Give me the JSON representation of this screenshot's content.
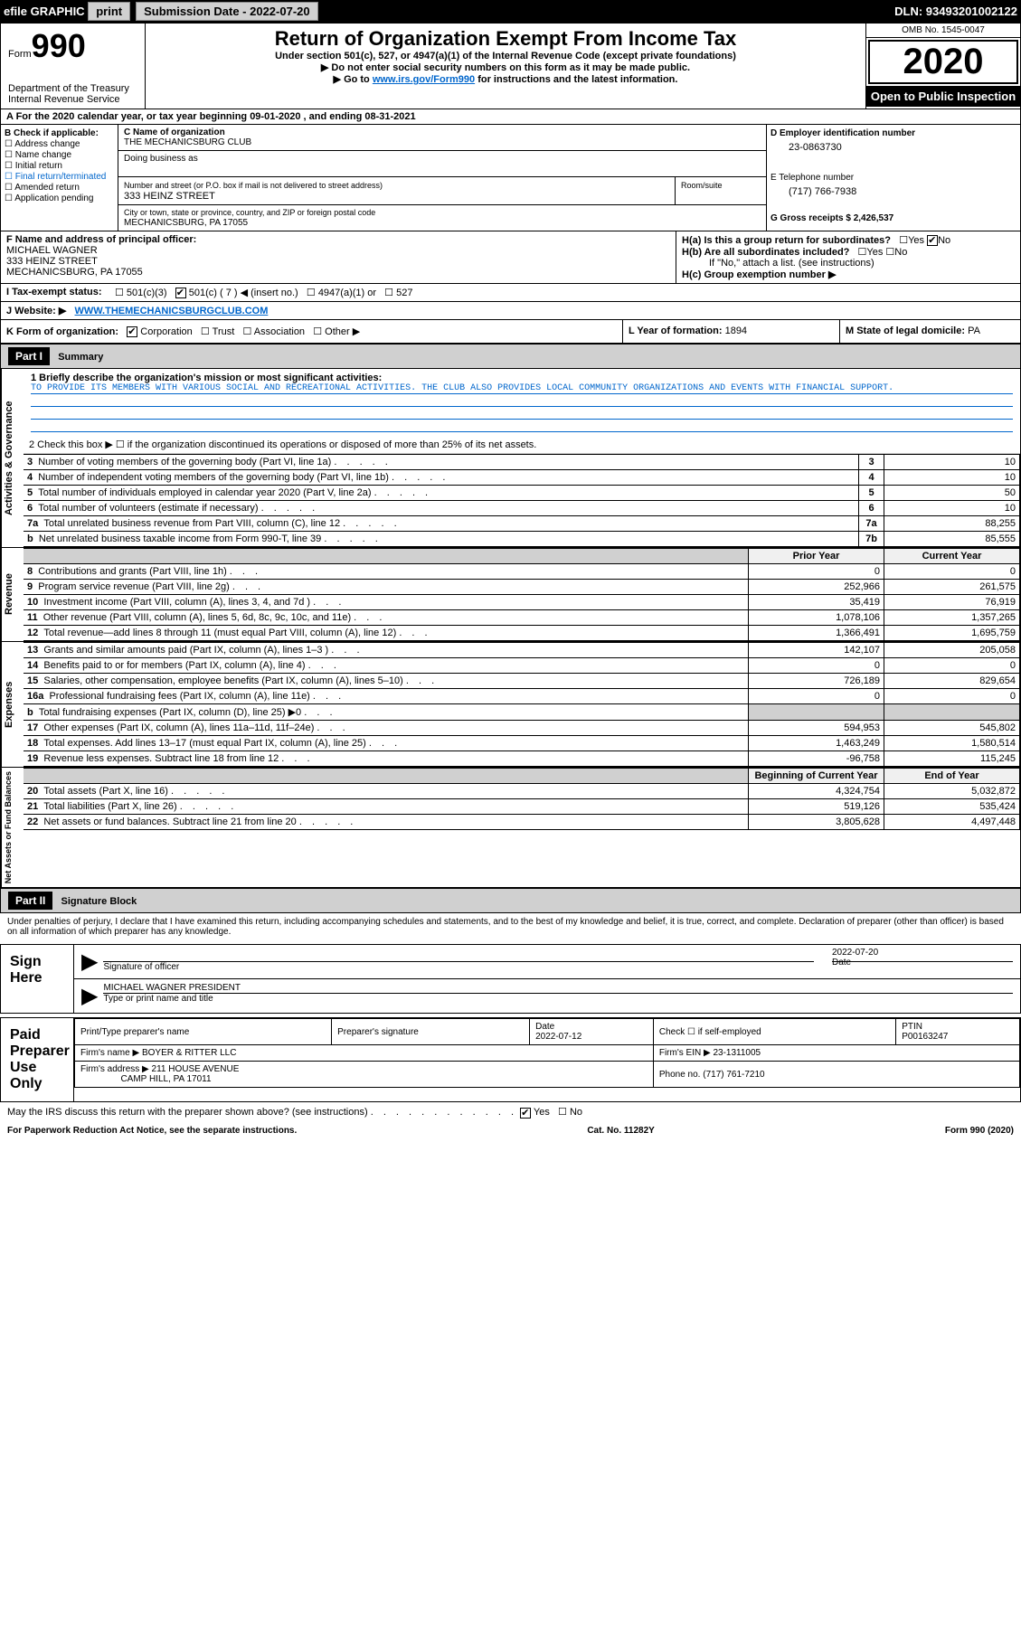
{
  "topbar": {
    "efile": "efile GRAPHIC",
    "print": "print",
    "sub_label": "Submission Date - 2022-07-20",
    "dln": "DLN: 93493201002122"
  },
  "header": {
    "form": "Form",
    "num": "990",
    "dept": "Department of the Treasury\nInternal Revenue Service",
    "title": "Return of Organization Exempt From Income Tax",
    "sub": "Under section 501(c), 527, or 4947(a)(1) of the Internal Revenue Code (except private foundations)",
    "arrow1": "▶ Do not enter social security numbers on this form as it may be made public.",
    "arrow2_pre": "▶ Go to ",
    "arrow2_link": "www.irs.gov/Form990",
    "arrow2_post": " for instructions and the latest information.",
    "omb": "OMB No. 1545-0047",
    "year": "2020",
    "inspect": "Open to Public Inspection"
  },
  "line_a": "A For the 2020 calendar year, or tax year beginning 09-01-2020    , and ending 08-31-2021",
  "sec_b": {
    "lbl": "B Check if applicable:",
    "opts": [
      "Address change",
      "Name change",
      "Initial return",
      "Final return/terminated",
      "Amended return",
      "Application pending"
    ],
    "c_lbl": "C Name of organization",
    "c_val": "THE MECHANICSBURG CLUB",
    "dba_lbl": "Doing business as",
    "addr_lbl": "Number and street (or P.O. box if mail is not delivered to street address)",
    "addr_val": "333 HEINZ STREET",
    "room_lbl": "Room/suite",
    "city_lbl": "City or town, state or province, country, and ZIP or foreign postal code",
    "city_val": "MECHANICSBURG, PA  17055",
    "d_lbl": "D Employer identification number",
    "d_val": "23-0863730",
    "e_lbl": "E Telephone number",
    "e_val": "(717) 766-7938",
    "g_lbl": "G Gross receipts $",
    "g_val": "2,426,537"
  },
  "sec_f": {
    "lbl": "F  Name and address of principal officer:",
    "name": "MICHAEL WAGNER",
    "addr": "333 HEINZ STREET",
    "city": "MECHANICSBURG, PA  17055"
  },
  "sec_h": {
    "a": "H(a)  Is this a group return for subordinates?",
    "b": "H(b)  Are all subordinates included?",
    "b_note": "If \"No,\" attach a list. (see instructions)",
    "c": "H(c)  Group exemption number ▶",
    "yes": "Yes",
    "no": "No"
  },
  "sec_i": {
    "lbl": "I   Tax-exempt status:",
    "c1": "501(c)(3)",
    "c2": "501(c) ( 7 ) ◀ (insert no.)",
    "c3": "4947(a)(1) or",
    "c4": "527"
  },
  "sec_j": {
    "lbl": "J   Website: ▶",
    "val": "WWW.THEMECHANICSBURGCLUB.COM"
  },
  "sec_k": {
    "lbl": "K Form of organization:",
    "o1": "Corporation",
    "o2": "Trust",
    "o3": "Association",
    "o4": "Other ▶",
    "l_lbl": "L Year of formation:",
    "l_val": "1894",
    "m_lbl": "M State of legal domicile:",
    "m_val": "PA"
  },
  "part1": {
    "hdr": "Part I",
    "title": "Summary",
    "l1_lbl": "1  Briefly describe the organization's mission or most significant activities:",
    "l1_val": "TO PROVIDE ITS MEMBERS WITH VARIOUS SOCIAL AND RECREATIONAL ACTIVITIES. THE CLUB ALSO PROVIDES LOCAL COMMUNITY ORGANIZATIONS AND EVENTS WITH FINANCIAL SUPPORT.",
    "l2": "2  Check this box ▶ ☐  if the organization discontinued its operations or disposed of more than 25% of its net assets.",
    "tabs": [
      "Activities & Governance",
      "Revenue",
      "Expenses",
      "Net Assets or Fund Balances"
    ],
    "gov_rows": [
      {
        "n": "3",
        "d": "Number of voting members of the governing body (Part VI, line 1a)",
        "k": "3",
        "v": "10"
      },
      {
        "n": "4",
        "d": "Number of independent voting members of the governing body (Part VI, line 1b)",
        "k": "4",
        "v": "10"
      },
      {
        "n": "5",
        "d": "Total number of individuals employed in calendar year 2020 (Part V, line 2a)",
        "k": "5",
        "v": "50"
      },
      {
        "n": "6",
        "d": "Total number of volunteers (estimate if necessary)",
        "k": "6",
        "v": "10"
      },
      {
        "n": "7a",
        "d": "Total unrelated business revenue from Part VIII, column (C), line 12",
        "k": "7a",
        "v": "88,255"
      },
      {
        "n": "b",
        "d": "Net unrelated business taxable income from Form 990-T, line 39",
        "k": "7b",
        "v": "85,555"
      }
    ],
    "col_hdr": [
      "Prior Year",
      "Current Year"
    ],
    "rev_rows": [
      {
        "n": "8",
        "d": "Contributions and grants (Part VIII, line 1h)",
        "p": "0",
        "c": "0"
      },
      {
        "n": "9",
        "d": "Program service revenue (Part VIII, line 2g)",
        "p": "252,966",
        "c": "261,575"
      },
      {
        "n": "10",
        "d": "Investment income (Part VIII, column (A), lines 3, 4, and 7d )",
        "p": "35,419",
        "c": "76,919"
      },
      {
        "n": "11",
        "d": "Other revenue (Part VIII, column (A), lines 5, 6d, 8c, 9c, 10c, and 11e)",
        "p": "1,078,106",
        "c": "1,357,265"
      },
      {
        "n": "12",
        "d": "Total revenue—add lines 8 through 11 (must equal Part VIII, column (A), line 12)",
        "p": "1,366,491",
        "c": "1,695,759"
      }
    ],
    "exp_rows": [
      {
        "n": "13",
        "d": "Grants and similar amounts paid (Part IX, column (A), lines 1–3 )",
        "p": "142,107",
        "c": "205,058"
      },
      {
        "n": "14",
        "d": "Benefits paid to or for members (Part IX, column (A), line 4)",
        "p": "0",
        "c": "0"
      },
      {
        "n": "15",
        "d": "Salaries, other compensation, employee benefits (Part IX, column (A), lines 5–10)",
        "p": "726,189",
        "c": "829,654"
      },
      {
        "n": "16a",
        "d": "Professional fundraising fees (Part IX, column (A), line 11e)",
        "p": "0",
        "c": "0"
      },
      {
        "n": "b",
        "d": "Total fundraising expenses (Part IX, column (D), line 25) ▶0",
        "p": "",
        "c": "",
        "grey": true
      },
      {
        "n": "17",
        "d": "Other expenses (Part IX, column (A), lines 11a–11d, 11f–24e)",
        "p": "594,953",
        "c": "545,802"
      },
      {
        "n": "18",
        "d": "Total expenses. Add lines 13–17 (must equal Part IX, column (A), line 25)",
        "p": "1,463,249",
        "c": "1,580,514"
      },
      {
        "n": "19",
        "d": "Revenue less expenses. Subtract line 18 from line 12",
        "p": "-96,758",
        "c": "115,245"
      }
    ],
    "na_hdr": [
      "Beginning of Current Year",
      "End of Year"
    ],
    "na_rows": [
      {
        "n": "20",
        "d": "Total assets (Part X, line 16)",
        "p": "4,324,754",
        "c": "5,032,872"
      },
      {
        "n": "21",
        "d": "Total liabilities (Part X, line 26)",
        "p": "519,126",
        "c": "535,424"
      },
      {
        "n": "22",
        "d": "Net assets or fund balances. Subtract line 21 from line 20",
        "p": "3,805,628",
        "c": "4,497,448"
      }
    ]
  },
  "part2": {
    "hdr": "Part II",
    "title": "Signature Block",
    "penalty": "Under penalties of perjury, I declare that I have examined this return, including accompanying schedules and statements, and to the best of my knowledge and belief, it is true, correct, and complete. Declaration of preparer (other than officer) is based on all information of which preparer has any knowledge.",
    "sign_here": "Sign Here",
    "sig_officer": "Signature of officer",
    "sig_date": "2022-07-20",
    "date_lbl": "Date",
    "name_title": "MICHAEL WAGNER  PRESIDENT",
    "name_lbl": "Type or print name and title",
    "paid": "Paid Preparer Use Only",
    "prep_cols": [
      "Print/Type preparer's name",
      "Preparer's signature",
      "Date",
      "Check ☐ if self-employed",
      "PTIN"
    ],
    "prep_date": "2022-07-12",
    "ptin": "P00163247",
    "firm_name_lbl": "Firm's name    ▶",
    "firm_name": "BOYER & RITTER LLC",
    "firm_ein_lbl": "Firm's EIN ▶",
    "firm_ein": "23-1311005",
    "firm_addr_lbl": "Firm's address ▶",
    "firm_addr": "211 HOUSE AVENUE",
    "firm_city": "CAMP HILL, PA  17011",
    "phone_lbl": "Phone no.",
    "phone": "(717) 761-7210",
    "may_irs": "May the IRS discuss this return with the preparer shown above? (see instructions)"
  },
  "footer": {
    "pra": "For Paperwork Reduction Act Notice, see the separate instructions.",
    "cat": "Cat. No. 11282Y",
    "form": "Form 990 (2020)"
  }
}
